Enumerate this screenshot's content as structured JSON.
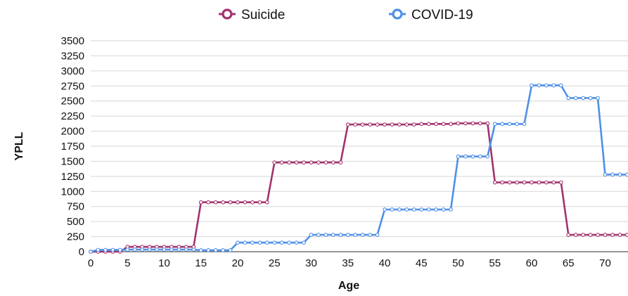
{
  "chart_data": {
    "type": "line",
    "title": "",
    "xlabel": "Age",
    "ylabel": "YPLL",
    "xlim": [
      0,
      73
    ],
    "ylim": [
      0,
      3500
    ],
    "x_ticks": [
      0,
      5,
      10,
      15,
      20,
      25,
      30,
      35,
      40,
      45,
      50,
      55,
      60,
      65,
      70
    ],
    "y_ticks": [
      0,
      250,
      500,
      750,
      1000,
      1250,
      1500,
      1750,
      2000,
      2250,
      2500,
      2750,
      3000,
      3250,
      3500
    ],
    "grid": "horizontal",
    "legend_position": "top",
    "series": [
      {
        "name": "Suicide",
        "color": "#a3326e",
        "marker": "hollow-circle",
        "x": [
          0,
          1,
          2,
          3,
          4,
          5,
          6,
          7,
          8,
          9,
          10,
          11,
          12,
          13,
          14,
          15,
          16,
          17,
          18,
          19,
          20,
          21,
          22,
          23,
          24,
          25,
          26,
          27,
          28,
          29,
          30,
          31,
          32,
          33,
          34,
          35,
          36,
          37,
          38,
          39,
          40,
          41,
          42,
          43,
          44,
          45,
          46,
          47,
          48,
          49,
          50,
          51,
          52,
          53,
          54,
          55,
          56,
          57,
          58,
          59,
          60,
          61,
          62,
          63,
          64,
          65,
          66,
          67,
          68,
          69,
          70,
          71,
          72,
          73
        ],
        "y": [
          0,
          0,
          0,
          0,
          0,
          80,
          80,
          80,
          80,
          80,
          80,
          80,
          80,
          80,
          80,
          820,
          820,
          820,
          820,
          820,
          820,
          820,
          820,
          820,
          820,
          1480,
          1480,
          1480,
          1480,
          1480,
          1480,
          1480,
          1480,
          1480,
          1480,
          2110,
          2110,
          2110,
          2110,
          2110,
          2110,
          2110,
          2110,
          2110,
          2110,
          2120,
          2120,
          2120,
          2120,
          2120,
          2130,
          2130,
          2130,
          2130,
          2130,
          1150,
          1150,
          1150,
          1150,
          1150,
          1150,
          1150,
          1150,
          1150,
          1150,
          280,
          280,
          280,
          280,
          280,
          280,
          280,
          280,
          280
        ]
      },
      {
        "name": "COVID-19",
        "color": "#4f8fe6",
        "marker": "hollow-circle",
        "x": [
          0,
          1,
          2,
          3,
          4,
          5,
          6,
          7,
          8,
          9,
          10,
          11,
          12,
          13,
          14,
          15,
          16,
          17,
          18,
          19,
          20,
          21,
          22,
          23,
          24,
          25,
          26,
          27,
          28,
          29,
          30,
          31,
          32,
          33,
          34,
          35,
          36,
          37,
          38,
          39,
          40,
          41,
          42,
          43,
          44,
          45,
          46,
          47,
          48,
          49,
          50,
          51,
          52,
          53,
          54,
          55,
          56,
          57,
          58,
          59,
          60,
          61,
          62,
          63,
          64,
          65,
          66,
          67,
          68,
          69,
          70,
          71,
          72,
          73
        ],
        "y": [
          0,
          30,
          30,
          30,
          30,
          35,
          35,
          35,
          35,
          35,
          35,
          35,
          35,
          35,
          35,
          25,
          25,
          25,
          25,
          25,
          150,
          150,
          150,
          150,
          150,
          150,
          150,
          150,
          150,
          150,
          280,
          280,
          280,
          280,
          280,
          280,
          280,
          280,
          280,
          280,
          700,
          700,
          700,
          700,
          700,
          700,
          700,
          700,
          700,
          700,
          1580,
          1580,
          1580,
          1580,
          1580,
          2120,
          2120,
          2120,
          2120,
          2120,
          2760,
          2760,
          2760,
          2760,
          2760,
          2550,
          2550,
          2550,
          2550,
          2550,
          1280,
          1280,
          1280,
          1280
        ]
      }
    ]
  }
}
